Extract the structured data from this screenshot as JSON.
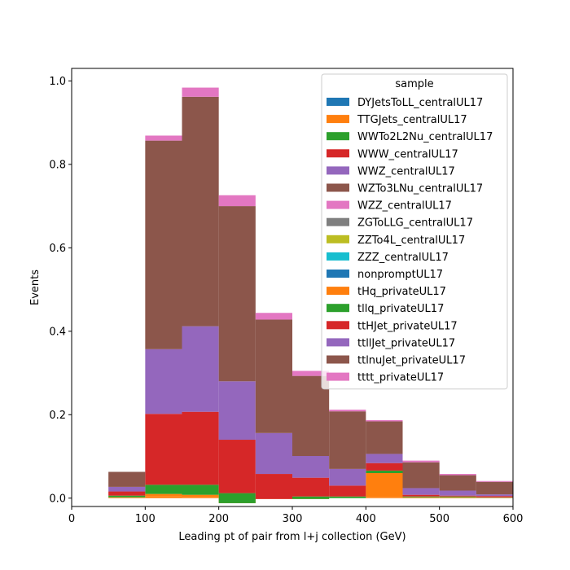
{
  "chart_data": {
    "type": "bar",
    "stacked": true,
    "xlabel": "Leading pt of pair from l+j collection (GeV)",
    "ylabel": "Events",
    "xlim": [
      0,
      600
    ],
    "ylim": [
      -0.02,
      1.03
    ],
    "xticks": [
      0,
      100,
      200,
      300,
      400,
      500,
      600
    ],
    "xtick_labels": [
      "0",
      "100",
      "200",
      "300",
      "400",
      "500",
      "600"
    ],
    "yticks": [
      0.0,
      0.2,
      0.4,
      0.6,
      0.8,
      1.0
    ],
    "ytick_labels": [
      "0.0",
      "0.2",
      "0.4",
      "0.6",
      "0.8",
      "1.0"
    ],
    "bin_edges": [
      50,
      100,
      150,
      200,
      250,
      300,
      350,
      400,
      450,
      500,
      550,
      600
    ],
    "legend": {
      "title": "sample",
      "placement": "upper right"
    },
    "series": [
      {
        "name": "DYJetsToLL_centralUL17",
        "color": "#1f77b4",
        "values": [
          0,
          0,
          0,
          0,
          0,
          0,
          0,
          0,
          0,
          0,
          0
        ]
      },
      {
        "name": "TTGJets_centralUL17",
        "color": "#ff7f0e",
        "values": [
          0,
          0.004,
          0.003,
          -0.012,
          0,
          0,
          0,
          0.002,
          0,
          0,
          0
        ]
      },
      {
        "name": "WWTo2L2Nu_centralUL17",
        "color": "#2ca02c",
        "values": [
          0,
          0,
          0,
          0,
          0,
          0,
          0,
          0,
          0,
          0,
          0
        ]
      },
      {
        "name": "WWW_centralUL17",
        "color": "#d62728",
        "values": [
          0,
          0,
          0,
          0,
          0,
          0,
          0,
          0,
          0,
          0,
          0
        ]
      },
      {
        "name": "WWZ_centralUL17",
        "color": "#9467bd",
        "values": [
          0,
          0,
          0,
          0,
          0,
          0,
          0,
          0,
          0,
          0,
          0
        ]
      },
      {
        "name": "WZTo3LNu_centralUL17",
        "color": "#8c564b",
        "values": [
          0,
          0,
          0,
          0,
          0,
          0,
          0,
          0,
          0,
          0,
          0
        ]
      },
      {
        "name": "WZZ_centralUL17",
        "color": "#e377c2",
        "values": [
          0,
          0,
          0,
          0,
          0,
          0,
          0,
          0,
          0,
          0,
          0
        ]
      },
      {
        "name": "ZGToLLG_centralUL17",
        "color": "#7f7f7f",
        "values": [
          0,
          0,
          0,
          0,
          0,
          0,
          0,
          0,
          0,
          0,
          0
        ]
      },
      {
        "name": "ZZTo4L_centralUL17",
        "color": "#bcbd22",
        "values": [
          0,
          0,
          0,
          0,
          0,
          0,
          0,
          0,
          0,
          0,
          0
        ]
      },
      {
        "name": "ZZZ_centralUL17",
        "color": "#17becf",
        "values": [
          0,
          0,
          0,
          0,
          0,
          0,
          0,
          0,
          0,
          0,
          0
        ]
      },
      {
        "name": "nonpromptUL17",
        "color": "#1f77b4",
        "values": [
          0,
          0,
          0,
          0,
          0,
          0,
          0,
          0,
          0,
          0,
          0
        ]
      },
      {
        "name": "tHq_privateUL17",
        "color": "#ff7f0e",
        "values": [
          0.002,
          0.006,
          0.005,
          0,
          -0.002,
          -0.002,
          0,
          0.058,
          0.002,
          0.002,
          0.001
        ]
      },
      {
        "name": "tllq_privateUL17",
        "color": "#2ca02c",
        "values": [
          0.004,
          0.022,
          0.024,
          0.024,
          0,
          0.006,
          0.004,
          0.006,
          0.002,
          0.002,
          0.001
        ]
      },
      {
        "name": "ttHJet_privateUL17",
        "color": "#d62728",
        "values": [
          0.01,
          0.17,
          0.175,
          0.128,
          0.06,
          0.045,
          0.026,
          0.018,
          0.004,
          0.002,
          0.003
        ]
      },
      {
        "name": "ttllJet_privateUL17",
        "color": "#9467bd",
        "values": [
          0.011,
          0.155,
          0.205,
          0.14,
          0.098,
          0.052,
          0.04,
          0.022,
          0.016,
          0.012,
          0.004
        ]
      },
      {
        "name": "ttlnuJet_privateUL17",
        "color": "#8c564b",
        "values": [
          0.036,
          0.5,
          0.55,
          0.42,
          0.272,
          0.192,
          0.138,
          0.078,
          0.062,
          0.037,
          0.03
        ]
      },
      {
        "name": "tttt_privateUL17",
        "color": "#e377c2",
        "values": [
          0,
          0.012,
          0.022,
          0.026,
          0.016,
          0.012,
          0.004,
          0.003,
          0.004,
          0.003,
          0.002
        ]
      }
    ]
  }
}
